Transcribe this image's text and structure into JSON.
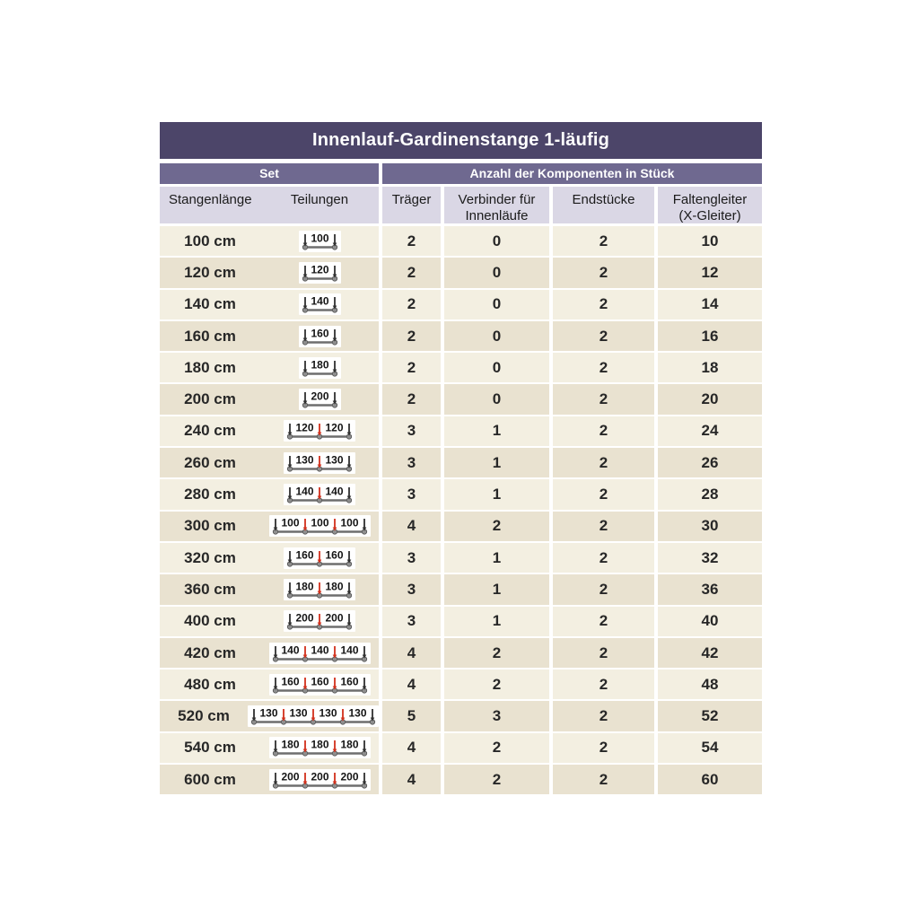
{
  "title": "Innenlauf-Gardinenstange 1-läufig",
  "groups": {
    "set": "Set",
    "components": "Anzahl der Komponenten in Stück"
  },
  "columns": {
    "length": "Stangenlänge",
    "divisions": "Teilungen",
    "brackets": "Träger",
    "connectors_line1": "Verbinder für",
    "connectors_line2": "Innenläufe",
    "end_pieces": "Endstücke",
    "gliders_line1": "Faltengleiter",
    "gliders_line2": "(X-Gleiter)"
  },
  "colors": {
    "title_bg": "#4c4569",
    "group_bg": "#6f6990",
    "header_bg": "#dad7e5",
    "row_light": "#f3efe1",
    "row_dark": "#e9e2d0",
    "divider_red": "#d2301c",
    "tick_dark": "#2f2f2f",
    "rod_gray": "#6e6e6e",
    "dot_gray": "#8f8f8f"
  },
  "rows": [
    {
      "length": "100 cm",
      "segments": [
        "100"
      ],
      "traeger": "2",
      "verbinder": "0",
      "endstuecke": "2",
      "faltengleiter": "10"
    },
    {
      "length": "120 cm",
      "segments": [
        "120"
      ],
      "traeger": "2",
      "verbinder": "0",
      "endstuecke": "2",
      "faltengleiter": "12"
    },
    {
      "length": "140 cm",
      "segments": [
        "140"
      ],
      "traeger": "2",
      "verbinder": "0",
      "endstuecke": "2",
      "faltengleiter": "14"
    },
    {
      "length": "160 cm",
      "segments": [
        "160"
      ],
      "traeger": "2",
      "verbinder": "0",
      "endstuecke": "2",
      "faltengleiter": "16"
    },
    {
      "length": "180 cm",
      "segments": [
        "180"
      ],
      "traeger": "2",
      "verbinder": "0",
      "endstuecke": "2",
      "faltengleiter": "18"
    },
    {
      "length": "200 cm",
      "segments": [
        "200"
      ],
      "traeger": "2",
      "verbinder": "0",
      "endstuecke": "2",
      "faltengleiter": "20"
    },
    {
      "length": "240 cm",
      "segments": [
        "120",
        "120"
      ],
      "traeger": "3",
      "verbinder": "1",
      "endstuecke": "2",
      "faltengleiter": "24"
    },
    {
      "length": "260 cm",
      "segments": [
        "130",
        "130"
      ],
      "traeger": "3",
      "verbinder": "1",
      "endstuecke": "2",
      "faltengleiter": "26"
    },
    {
      "length": "280 cm",
      "segments": [
        "140",
        "140"
      ],
      "traeger": "3",
      "verbinder": "1",
      "endstuecke": "2",
      "faltengleiter": "28"
    },
    {
      "length": "300 cm",
      "segments": [
        "100",
        "100",
        "100"
      ],
      "traeger": "4",
      "verbinder": "2",
      "endstuecke": "2",
      "faltengleiter": "30"
    },
    {
      "length": "320 cm",
      "segments": [
        "160",
        "160"
      ],
      "traeger": "3",
      "verbinder": "1",
      "endstuecke": "2",
      "faltengleiter": "32"
    },
    {
      "length": "360 cm",
      "segments": [
        "180",
        "180"
      ],
      "traeger": "3",
      "verbinder": "1",
      "endstuecke": "2",
      "faltengleiter": "36"
    },
    {
      "length": "400 cm",
      "segments": [
        "200",
        "200"
      ],
      "traeger": "3",
      "verbinder": "1",
      "endstuecke": "2",
      "faltengleiter": "40"
    },
    {
      "length": "420 cm",
      "segments": [
        "140",
        "140",
        "140"
      ],
      "traeger": "4",
      "verbinder": "2",
      "endstuecke": "2",
      "faltengleiter": "42"
    },
    {
      "length": "480 cm",
      "segments": [
        "160",
        "160",
        "160"
      ],
      "traeger": "4",
      "verbinder": "2",
      "endstuecke": "2",
      "faltengleiter": "48"
    },
    {
      "length": "520 cm",
      "segments": [
        "130",
        "130",
        "130",
        "130"
      ],
      "traeger": "5",
      "verbinder": "3",
      "endstuecke": "2",
      "faltengleiter": "52"
    },
    {
      "length": "540 cm",
      "segments": [
        "180",
        "180",
        "180"
      ],
      "traeger": "4",
      "verbinder": "2",
      "endstuecke": "2",
      "faltengleiter": "54"
    },
    {
      "length": "600 cm",
      "segments": [
        "200",
        "200",
        "200"
      ],
      "traeger": "4",
      "verbinder": "2",
      "endstuecke": "2",
      "faltengleiter": "60"
    }
  ]
}
